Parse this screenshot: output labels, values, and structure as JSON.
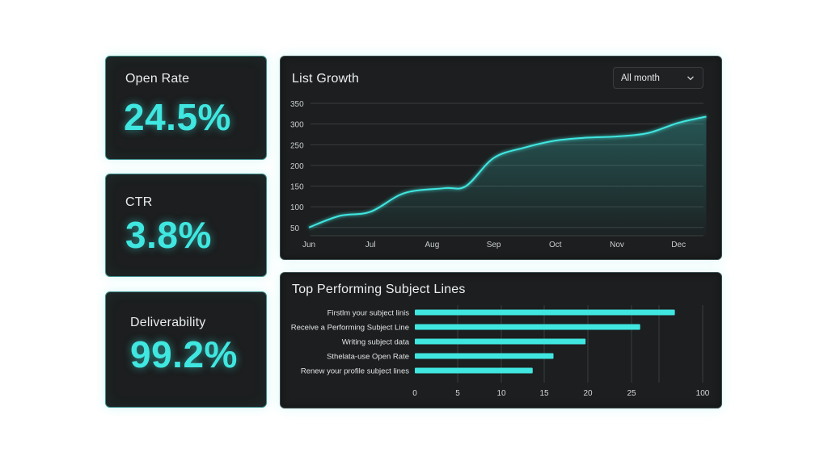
{
  "stats": [
    {
      "label": "Open Rate",
      "value": "24.5%"
    },
    {
      "label": "CTR",
      "value": "3.8%"
    },
    {
      "label": "Deliverability",
      "value": "99.2%"
    }
  ],
  "list_growth": {
    "title": "List Growth",
    "dropdown_value": "All month"
  },
  "top_subjects": {
    "title": "Top Performing Subject Lines"
  },
  "colors": {
    "accent": "#3fe7e0",
    "panel_bg": "#1c1e1f",
    "grid": "#3a3d3f"
  },
  "chart_data": [
    {
      "type": "area",
      "title": "List Growth",
      "x": [
        "Jun",
        "Jul",
        "Aug",
        "Sep",
        "Oct",
        "Nov",
        "Dec"
      ],
      "x_ticks": [
        "Jun",
        "Jul",
        "Aug",
        "Sep",
        "Oct",
        "Nov",
        "Dec"
      ],
      "y_ticks": [
        50,
        100,
        150,
        200,
        250,
        300,
        350
      ],
      "ylim": [
        30,
        350
      ],
      "series": [
        {
          "points": [
            {
              "x": 0.0,
              "y": 50
            },
            {
              "x": 0.5,
              "y": 78
            },
            {
              "x": 1.0,
              "y": 88
            },
            {
              "x": 1.55,
              "y": 133
            },
            {
              "x": 2.2,
              "y": 145
            },
            {
              "x": 2.55,
              "y": 150
            },
            {
              "x": 3.0,
              "y": 218
            },
            {
              "x": 3.5,
              "y": 243
            },
            {
              "x": 4.0,
              "y": 260
            },
            {
              "x": 4.5,
              "y": 267
            },
            {
              "x": 5.0,
              "y": 270
            },
            {
              "x": 5.5,
              "y": 278
            },
            {
              "x": 6.0,
              "y": 303
            },
            {
              "x": 6.45,
              "y": 318
            }
          ]
        }
      ],
      "grid": true
    },
    {
      "type": "bar",
      "orientation": "horizontal",
      "title": "Top Performing Subject Lines",
      "categories": [
        "Firstlm your subject linis",
        "Receive a Performing Subject Line",
        "Writing subject data",
        "Sthelata-use Open Rate",
        "Renew your profile subject lines"
      ],
      "values": [
        30,
        26,
        19.7,
        16,
        13.6
      ],
      "x_ticks": [
        "0",
        "5",
        "10",
        "15",
        "20",
        "25",
        "100"
      ],
      "grid": true
    }
  ]
}
